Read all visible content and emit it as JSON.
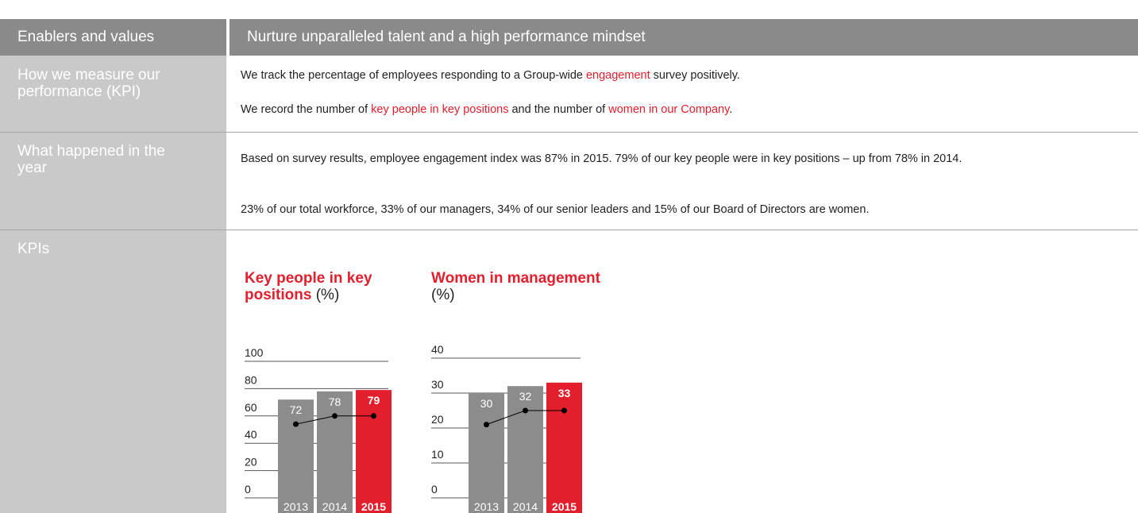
{
  "header": {
    "left": "Enablers and values",
    "right": "Nurture unparalleled talent and a high performance mindset"
  },
  "rows": [
    {
      "label": "How we measure our performance (KPI)",
      "paragraphs": [
        [
          {
            "text": "We track the percentage of employees responding to a Group-wide "
          },
          {
            "text": "engagement",
            "color": "#e31e2d"
          },
          {
            "text": " survey positively."
          }
        ],
        [
          {
            "text": "We record the number of "
          },
          {
            "text": "key people in key positions",
            "color": "#e31e2d"
          },
          {
            "text": " and the number of "
          },
          {
            "text": "women in our Company",
            "color": "#e31e2d"
          },
          {
            "text": "."
          }
        ]
      ]
    },
    {
      "label": "What happened in the year",
      "paragraphs": [
        [
          {
            "text": "Based on survey results, employee engagement index was 87% in 2015. 79% of our key people were in key positions – up from 78% in 2014."
          }
        ],
        [
          {
            "text": "23% of our total workforce, 33% of our managers, 34% of our senior leaders and 15% of our Board of Directors are women."
          }
        ]
      ]
    },
    {
      "label": "KPIs"
    }
  ],
  "chart_data": [
    {
      "type": "bar",
      "title": "Key people in key positions",
      "unit": "(%)",
      "categories": [
        "2013",
        "2014",
        "2015"
      ],
      "values": [
        72,
        78,
        79
      ],
      "colors": [
        "#8c8c8c",
        "#8c8c8c",
        "#e31e2d"
      ],
      "line_values": [
        54,
        60,
        60
      ],
      "line_color": "#000000",
      "ylim": [
        0,
        100
      ],
      "yticks": [
        0,
        20,
        40,
        60,
        80,
        100
      ]
    },
    {
      "type": "bar",
      "title": "Women in management",
      "unit": "(%)",
      "categories": [
        "2013",
        "2014",
        "2015"
      ],
      "values": [
        30,
        32,
        33
      ],
      "colors": [
        "#8c8c8c",
        "#8c8c8c",
        "#e31e2d"
      ],
      "line_values": [
        21,
        25,
        25
      ],
      "line_color": "#000000",
      "ylim": [
        0,
        40
      ],
      "yticks": [
        0,
        10,
        20,
        30,
        40
      ]
    }
  ]
}
